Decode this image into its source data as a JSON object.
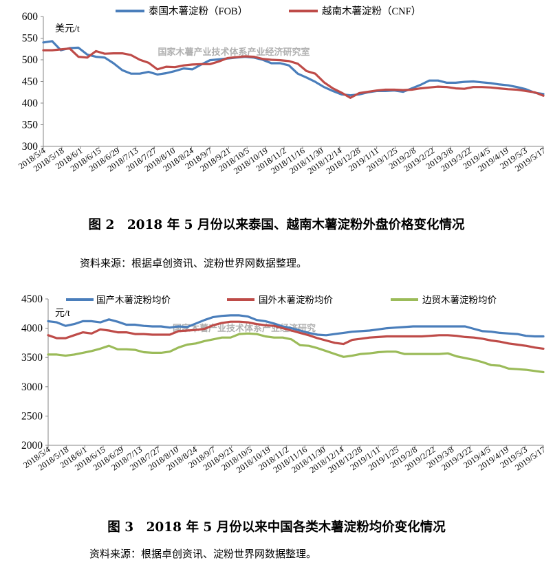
{
  "figures": [
    {
      "caption": "图 2　2018 年 5 月份以来泰国、越南木薯淀粉外盘价格变化情况",
      "source": "资料来源：根据卓创资讯、淀粉世界网数据整理。"
    },
    {
      "caption": "图 3　2018 年 5 月份以来中国各类木薯淀粉均价变化情况",
      "source": "资料来源：根据卓创资讯、淀粉世界网数据整理。"
    }
  ],
  "chart_data": [
    {
      "type": "line",
      "unit_label": "美元/t",
      "watermark": "国家木薯产业技术体系产业经济研究室",
      "ylim": [
        300,
        600
      ],
      "yticks": [
        300,
        350,
        400,
        450,
        500,
        550,
        600
      ],
      "xticks": [
        "2018/5/4",
        "2018/5/18",
        "2018/6/1",
        "2018/6/15",
        "2018/6/29",
        "2018/7/13",
        "2018/7/27",
        "2018/8/10",
        "2018/8/24",
        "2018/9/7",
        "2018/9/21",
        "2018/10/5",
        "2018/10/19",
        "2018/11/2",
        "2018/11/16",
        "2018/11/30",
        "2018/12/14",
        "2018/12/28",
        "2019/1/11",
        "2019/1/25",
        "2019/2/8",
        "2019/2/22",
        "2019/3/8",
        "2019/3/22",
        "2019/4/5",
        "2019/4/19",
        "2019/5/3",
        "2019/5/17"
      ],
      "grid": false,
      "legend": "top",
      "series": [
        {
          "name": "泰国木薯淀粉（FOB）",
          "color": "#4a7ebb",
          "values": [
            540,
            543,
            522,
            527,
            528,
            512,
            507,
            505,
            492,
            476,
            468,
            468,
            472,
            466,
            469,
            474,
            480,
            478,
            489,
            499,
            501,
            503,
            505,
            507,
            505,
            500,
            492,
            492,
            487,
            468,
            459,
            449,
            437,
            428,
            420,
            418,
            420,
            425,
            428,
            428,
            429,
            426,
            434,
            442,
            452,
            452,
            447,
            447,
            449,
            450,
            448,
            446,
            443,
            441,
            437,
            432,
            424,
            421
          ]
        },
        {
          "name": "越南木薯淀粉（CNF）",
          "color": "#be4b48",
          "values": [
            522,
            522,
            524,
            526,
            507,
            505,
            520,
            514,
            515,
            515,
            511,
            500,
            493,
            478,
            484,
            483,
            487,
            489,
            490,
            490,
            496,
            504,
            506,
            508,
            507,
            502,
            500,
            499,
            497,
            491,
            474,
            468,
            448,
            434,
            424,
            412,
            423,
            426,
            429,
            431,
            431,
            430,
            431,
            434,
            436,
            438,
            437,
            434,
            433,
            437,
            437,
            436,
            434,
            432,
            431,
            428,
            425,
            417
          ]
        }
      ]
    },
    {
      "type": "line",
      "unit_label": "元/t",
      "watermark": "国家木薯产业技术体系产业经济研究",
      "ylim": [
        2000,
        4500
      ],
      "yticks": [
        2000,
        2500,
        3000,
        3500,
        4000,
        4500
      ],
      "xticks": [
        "2018/5/4",
        "2018/5/18",
        "2018/6/1",
        "2018/6/15",
        "2018/6/29",
        "2018/7/13",
        "2018/7/27",
        "2018/8/10",
        "2018/8/24",
        "2018/9/7",
        "2018/9/21",
        "2018/10/5",
        "2018/10/19",
        "2018/11/2",
        "2018/11/16",
        "2018/11/30",
        "2018/12/14",
        "2018/12/28",
        "2019/1/11",
        "2019/1/25",
        "2019/2/8",
        "2019/2/22",
        "2019/3/8",
        "2019/3/22",
        "2019/4/5",
        "2019/4/19",
        "2019/5/3",
        "2019/5/17"
      ],
      "grid": false,
      "legend": "top",
      "series": [
        {
          "name": "国产木薯淀粉均价",
          "color": "#4a7ebb",
          "values": [
            4120,
            4100,
            4040,
            4070,
            4120,
            4120,
            4100,
            4150,
            4110,
            4060,
            4060,
            4040,
            4030,
            4030,
            4010,
            4030,
            4020,
            4080,
            4140,
            4190,
            4210,
            4220,
            4220,
            4200,
            4140,
            4120,
            4080,
            4030,
            4000,
            3960,
            3920,
            3890,
            3880,
            3900,
            3920,
            3940,
            3950,
            3960,
            3980,
            4000,
            4010,
            4020,
            4030,
            4030,
            4030,
            4030,
            4030,
            4030,
            4030,
            3990,
            3950,
            3940,
            3920,
            3910,
            3900,
            3870,
            3860,
            3860
          ]
        },
        {
          "name": "国外木薯淀粉均价",
          "color": "#be4b48",
          "values": [
            3880,
            3830,
            3830,
            3880,
            3930,
            3910,
            3980,
            3960,
            3930,
            3930,
            3900,
            3900,
            3890,
            3890,
            3890,
            3950,
            3960,
            3970,
            3990,
            4050,
            4090,
            4110,
            4110,
            4100,
            4070,
            4050,
            4040,
            4000,
            3960,
            3920,
            3880,
            3830,
            3790,
            3750,
            3730,
            3800,
            3820,
            3840,
            3850,
            3860,
            3860,
            3860,
            3860,
            3860,
            3870,
            3880,
            3880,
            3870,
            3850,
            3840,
            3820,
            3790,
            3770,
            3740,
            3720,
            3700,
            3670,
            3650
          ]
        },
        {
          "name": "边贸木薯淀粉均价",
          "color": "#9bbb59",
          "values": [
            3550,
            3550,
            3530,
            3550,
            3580,
            3610,
            3650,
            3700,
            3640,
            3640,
            3630,
            3590,
            3580,
            3580,
            3600,
            3670,
            3720,
            3740,
            3780,
            3810,
            3840,
            3840,
            3900,
            3910,
            3900,
            3860,
            3840,
            3840,
            3810,
            3710,
            3700,
            3660,
            3610,
            3560,
            3510,
            3530,
            3560,
            3570,
            3590,
            3600,
            3600,
            3560,
            3560,
            3560,
            3560,
            3560,
            3570,
            3520,
            3490,
            3460,
            3420,
            3370,
            3360,
            3310,
            3300,
            3290,
            3270,
            3250
          ]
        }
      ]
    }
  ]
}
